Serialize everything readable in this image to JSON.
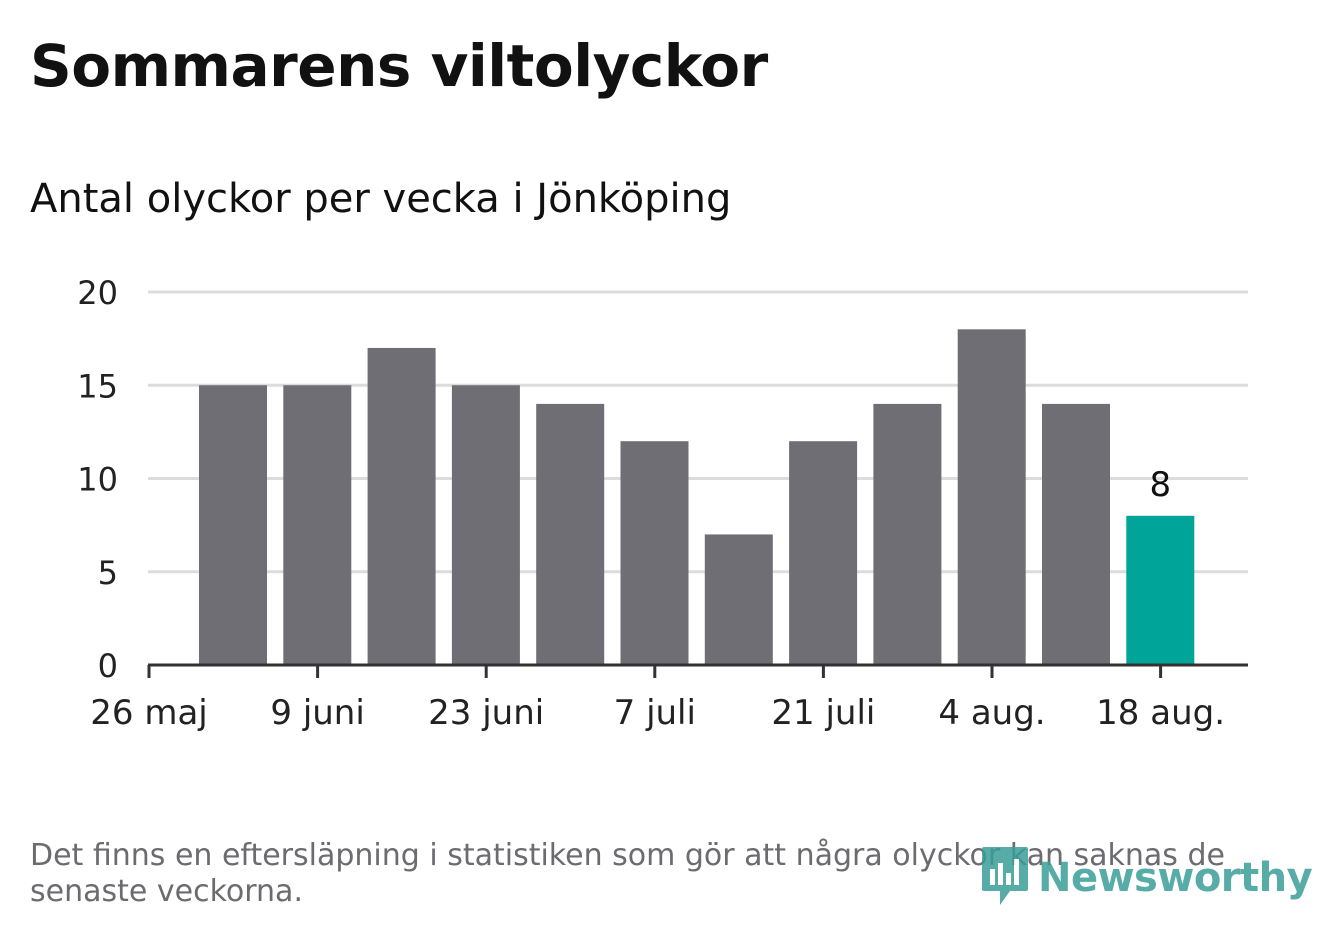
{
  "header": {
    "title": "Sommarens viltolyckor",
    "subtitle": "Antal olyckor per vecka i Jönköping"
  },
  "footnote": "Det finns en eftersläpning i statistiken som gör att några olyckor kan saknas de senaste veckorna.",
  "logo": {
    "text": "Newsworthy",
    "icon": "newsworthy-chat-bars-icon"
  },
  "colors": {
    "bar": "#6e6e74",
    "highlight": "#00a499",
    "grid": "#dcdcdc",
    "axis": "#333333",
    "text": "#111111",
    "muted": "#6b6b70",
    "brand": "#3a9e98"
  },
  "chart_data": {
    "type": "bar",
    "title": "Sommarens viltolyckor",
    "subtitle": "Antal olyckor per vecka i Jönköping",
    "xlabel": "",
    "ylabel": "",
    "x_ticks": [
      "26 maj",
      "9 juni",
      "23 juni",
      "7 juli",
      "21 juli",
      "4 aug.",
      "18 aug."
    ],
    "y_ticks": [
      0,
      5,
      10,
      15,
      20
    ],
    "ylim": [
      0,
      20
    ],
    "grid": true,
    "legend": "none",
    "values": [
      15,
      15,
      17,
      15,
      14,
      12,
      7,
      12,
      14,
      18,
      14,
      8
    ],
    "highlight_index": 11,
    "data_labels": [
      {
        "index": 11,
        "text": "8"
      }
    ]
  }
}
